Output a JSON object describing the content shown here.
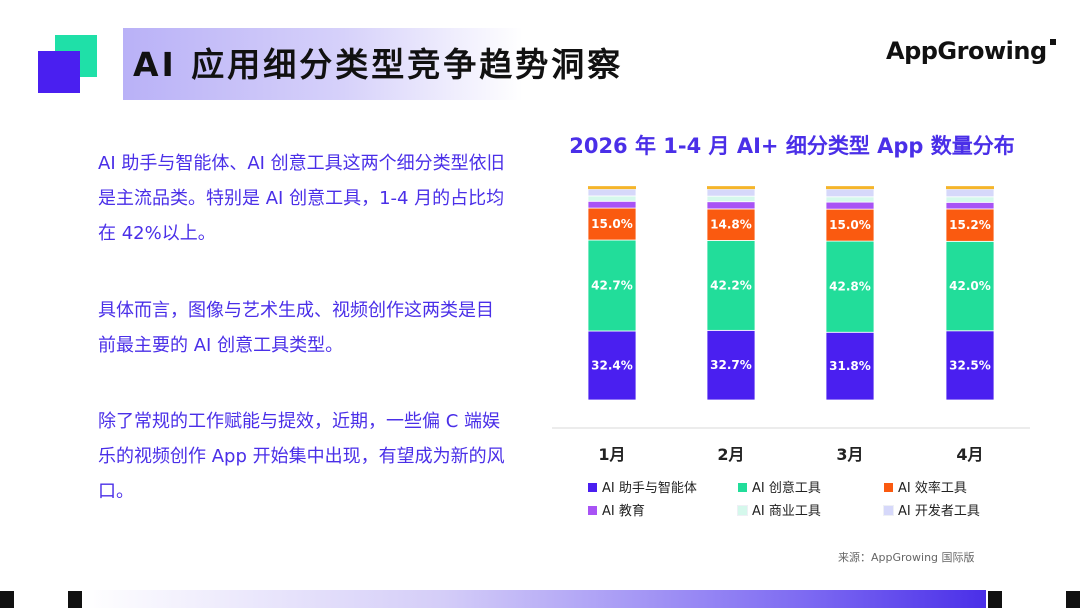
{
  "header": {
    "title": "AI 应用细分类型竞争趋势洞察",
    "logo_text": "AppGrowing"
  },
  "paragraphs": [
    "AI 助手与智能体、AI 创意工具这两个细分类型依旧是主流品类。特别是 AI 创意工具，1-4 月的占比均在 42%以上。",
    "具体而言，图像与艺术生成、视频创作这两类是目前最主要的 AI 创意工具类型。",
    "除了常规的工作赋能与提效，近期，一些偏 C 端娱乐的视频创作 App 开始集中出现，有望成为新的风口。"
  ],
  "chart_data": {
    "type": "bar",
    "stacked": true,
    "percent": true,
    "title": "2026 年 1-4 月 AI+ 细分类型 App 数量分布",
    "categories": [
      "1月",
      "2月",
      "3月",
      "4月"
    ],
    "ylim": [
      0,
      100
    ],
    "grid": false,
    "legend_position": "bottom",
    "series": [
      {
        "name": "AI 助手与智能体",
        "values": [
          32.4,
          32.7,
          31.8,
          32.5
        ],
        "labels": [
          "32.4%",
          "32.7%",
          "31.8%",
          "32.5%"
        ],
        "color": "#4a1ff0"
      },
      {
        "name": "AI 创意工具",
        "values": [
          42.7,
          42.2,
          42.8,
          42.0
        ],
        "labels": [
          "42.7%",
          "42.2%",
          "42.8%",
          "42.0%"
        ],
        "color": "#22dd9a"
      },
      {
        "name": "AI 效率工具",
        "values": [
          15.0,
          14.8,
          15.0,
          15.2
        ],
        "labels": [
          "15.0%",
          "14.8%",
          "15.0%",
          "15.2%"
        ],
        "color": "#fa5a10"
      },
      {
        "name": "AI 教育",
        "values": [
          3.2,
          3.4,
          3.3,
          3.1
        ],
        "color": "#a853f5"
      },
      {
        "name": "AI 商业工具",
        "values": [
          2.5,
          2.6,
          2.5,
          2.6
        ],
        "color": "#d5f8ec"
      },
      {
        "name": "AI 开发者工具",
        "values": [
          3.2,
          3.3,
          3.6,
          3.6
        ],
        "color": "#d6d8fa"
      }
    ],
    "top_accent_color": "#f5b52a"
  },
  "source": "来源：AppGrowing 国际版"
}
